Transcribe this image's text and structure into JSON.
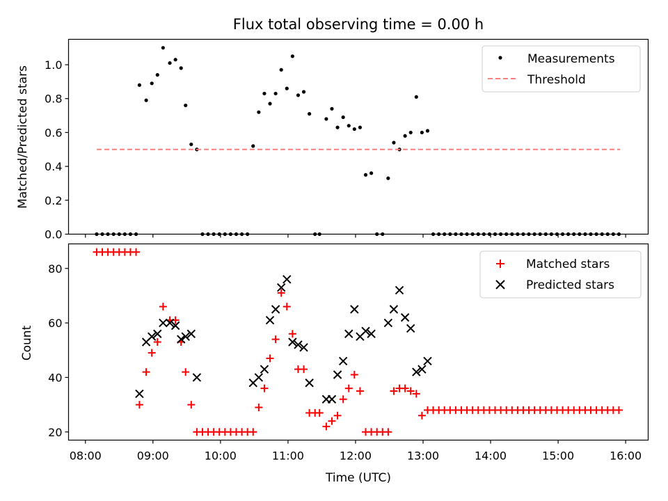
{
  "chart_data": [
    {
      "type": "scatter",
      "title": "Flux total observing time = 0.00 h",
      "ylabel": "Matched/Predicted stars",
      "xlabel": "",
      "ylim": [
        0,
        1.15
      ],
      "xlim": [
        "07:45",
        "16:20"
      ],
      "yticks": [
        "0.0",
        "0.2",
        "0.4",
        "0.6",
        "0.8",
        "1.0"
      ],
      "grid": false,
      "legend_position": "top-right",
      "series": [
        {
          "name": "Measurements",
          "marker": "dot",
          "color": "#000000",
          "points": [
            [
              "08:10",
              0
            ],
            [
              "08:15",
              0
            ],
            [
              "08:20",
              0
            ],
            [
              "08:25",
              0
            ],
            [
              "08:30",
              0
            ],
            [
              "08:35",
              0
            ],
            [
              "08:40",
              0
            ],
            [
              "08:45",
              0
            ],
            [
              "08:48",
              0.88
            ],
            [
              "08:54",
              0.79
            ],
            [
              "08:59",
              0.89
            ],
            [
              "09:04",
              0.94
            ],
            [
              "09:09",
              1.1
            ],
            [
              "09:15",
              1.01
            ],
            [
              "09:20",
              1.03
            ],
            [
              "09:25",
              0.98
            ],
            [
              "09:29",
              0.76
            ],
            [
              "09:34",
              0.53
            ],
            [
              "09:39",
              0.5
            ],
            [
              "09:44",
              0
            ],
            [
              "09:49",
              0
            ],
            [
              "09:54",
              0
            ],
            [
              "09:59",
              0
            ],
            [
              "10:04",
              0
            ],
            [
              "10:09",
              0
            ],
            [
              "10:14",
              0
            ],
            [
              "10:19",
              0
            ],
            [
              "10:24",
              0
            ],
            [
              "10:29",
              0.52
            ],
            [
              "10:34",
              0.72
            ],
            [
              "10:39",
              0.83
            ],
            [
              "10:44",
              0.77
            ],
            [
              "10:49",
              0.83
            ],
            [
              "10:54",
              0.97
            ],
            [
              "10:59",
              0.86
            ],
            [
              "11:04",
              1.05
            ],
            [
              "11:09",
              0.82
            ],
            [
              "11:14",
              0.84
            ],
            [
              "11:19",
              0.71
            ],
            [
              "11:24",
              0
            ],
            [
              "11:28",
              0
            ],
            [
              "11:34",
              0.68
            ],
            [
              "11:39",
              0.74
            ],
            [
              "11:44",
              0.63
            ],
            [
              "11:49",
              0.69
            ],
            [
              "11:54",
              0.64
            ],
            [
              "11:59",
              0.62
            ],
            [
              "12:04",
              0.63
            ],
            [
              "12:09",
              0.35
            ],
            [
              "12:14",
              0.36
            ],
            [
              "12:19",
              0
            ],
            [
              "12:24",
              0
            ],
            [
              "12:29",
              0.33
            ],
            [
              "12:34",
              0.54
            ],
            [
              "12:39",
              0.5
            ],
            [
              "12:44",
              0.58
            ],
            [
              "12:49",
              0.6
            ],
            [
              "12:54",
              0.81
            ],
            [
              "12:59",
              0.6
            ],
            [
              "13:04",
              0.61
            ],
            [
              "13:09",
              0
            ],
            [
              "13:14",
              0
            ],
            [
              "13:19",
              0
            ],
            [
              "13:24",
              0
            ],
            [
              "13:29",
              0
            ],
            [
              "13:34",
              0
            ],
            [
              "13:39",
              0
            ],
            [
              "13:44",
              0
            ],
            [
              "13:49",
              0
            ],
            [
              "13:54",
              0
            ],
            [
              "13:59",
              0
            ],
            [
              "14:04",
              0
            ],
            [
              "14:09",
              0
            ],
            [
              "14:14",
              0
            ],
            [
              "14:19",
              0
            ],
            [
              "14:24",
              0
            ],
            [
              "14:29",
              0
            ],
            [
              "14:34",
              0
            ],
            [
              "14:39",
              0
            ],
            [
              "14:44",
              0
            ],
            [
              "14:49",
              0
            ],
            [
              "14:54",
              0
            ],
            [
              "14:59",
              0
            ],
            [
              "15:04",
              0
            ],
            [
              "15:09",
              0
            ],
            [
              "15:14",
              0
            ],
            [
              "15:19",
              0
            ],
            [
              "15:24",
              0
            ],
            [
              "15:29",
              0
            ],
            [
              "15:34",
              0
            ],
            [
              "15:39",
              0
            ],
            [
              "15:44",
              0
            ],
            [
              "15:49",
              0
            ],
            [
              "15:54",
              0
            ]
          ]
        },
        {
          "name": "Threshold",
          "type": "line",
          "style": "dashed",
          "color": "#ff7f7f",
          "points": [
            [
              "08:10",
              0.5
            ],
            [
              "15:55",
              0.5
            ]
          ]
        }
      ]
    },
    {
      "type": "scatter",
      "title": "",
      "ylabel": "Count",
      "xlabel": "Time (UTC)",
      "ylim": [
        17,
        89
      ],
      "xlim": [
        "07:45",
        "16:20"
      ],
      "yticks": [
        "20",
        "40",
        "60",
        "80"
      ],
      "xticks": [
        "08:00",
        "09:00",
        "10:00",
        "11:00",
        "12:00",
        "13:00",
        "14:00",
        "15:00",
        "16:00"
      ],
      "grid": false,
      "legend_position": "top-right",
      "series": [
        {
          "name": "Matched stars",
          "marker": "plus",
          "color": "#ff0000",
          "points": [
            [
              "08:10",
              86
            ],
            [
              "08:15",
              86
            ],
            [
              "08:20",
              86
            ],
            [
              "08:25",
              86
            ],
            [
              "08:30",
              86
            ],
            [
              "08:35",
              86
            ],
            [
              "08:40",
              86
            ],
            [
              "08:45",
              86
            ],
            [
              "08:48",
              30
            ],
            [
              "08:54",
              42
            ],
            [
              "08:59",
              49
            ],
            [
              "09:04",
              53
            ],
            [
              "09:09",
              66
            ],
            [
              "09:15",
              61
            ],
            [
              "09:20",
              61
            ],
            [
              "09:25",
              53
            ],
            [
              "09:29",
              42
            ],
            [
              "09:34",
              30
            ],
            [
              "09:39",
              20
            ],
            [
              "09:44",
              20
            ],
            [
              "09:49",
              20
            ],
            [
              "09:54",
              20
            ],
            [
              "09:59",
              20
            ],
            [
              "10:04",
              20
            ],
            [
              "10:09",
              20
            ],
            [
              "10:14",
              20
            ],
            [
              "10:19",
              20
            ],
            [
              "10:24",
              20
            ],
            [
              "10:29",
              20
            ],
            [
              "10:34",
              29
            ],
            [
              "10:39",
              36
            ],
            [
              "10:44",
              47
            ],
            [
              "10:49",
              54
            ],
            [
              "10:54",
              71
            ],
            [
              "10:59",
              66
            ],
            [
              "11:04",
              56
            ],
            [
              "11:09",
              43
            ],
            [
              "11:14",
              43
            ],
            [
              "11:19",
              27
            ],
            [
              "11:24",
              27
            ],
            [
              "11:28",
              27
            ],
            [
              "11:34",
              22
            ],
            [
              "11:39",
              24
            ],
            [
              "11:44",
              26
            ],
            [
              "11:49",
              32
            ],
            [
              "11:54",
              36
            ],
            [
              "11:59",
              41
            ],
            [
              "12:04",
              35
            ],
            [
              "12:09",
              20
            ],
            [
              "12:14",
              20
            ],
            [
              "12:19",
              20
            ],
            [
              "12:24",
              20
            ],
            [
              "12:29",
              20
            ],
            [
              "12:34",
              35
            ],
            [
              "12:39",
              36
            ],
            [
              "12:44",
              36
            ],
            [
              "12:49",
              35
            ],
            [
              "12:54",
              34
            ],
            [
              "12:59",
              26
            ],
            [
              "13:04",
              28
            ],
            [
              "13:09",
              28
            ],
            [
              "13:14",
              28
            ],
            [
              "13:19",
              28
            ],
            [
              "13:24",
              28
            ],
            [
              "13:29",
              28
            ],
            [
              "13:34",
              28
            ],
            [
              "13:39",
              28
            ],
            [
              "13:44",
              28
            ],
            [
              "13:49",
              28
            ],
            [
              "13:54",
              28
            ],
            [
              "13:59",
              28
            ],
            [
              "14:04",
              28
            ],
            [
              "14:09",
              28
            ],
            [
              "14:14",
              28
            ],
            [
              "14:19",
              28
            ],
            [
              "14:24",
              28
            ],
            [
              "14:29",
              28
            ],
            [
              "14:34",
              28
            ],
            [
              "14:39",
              28
            ],
            [
              "14:44",
              28
            ],
            [
              "14:49",
              28
            ],
            [
              "14:54",
              28
            ],
            [
              "14:59",
              28
            ],
            [
              "15:04",
              28
            ],
            [
              "15:09",
              28
            ],
            [
              "15:14",
              28
            ],
            [
              "15:19",
              28
            ],
            [
              "15:24",
              28
            ],
            [
              "15:29",
              28
            ],
            [
              "15:34",
              28
            ],
            [
              "15:39",
              28
            ],
            [
              "15:44",
              28
            ],
            [
              "15:49",
              28
            ],
            [
              "15:54",
              28
            ]
          ]
        },
        {
          "name": "Predicted stars",
          "marker": "x",
          "color": "#000000",
          "points": [
            [
              "08:48",
              34
            ],
            [
              "08:54",
              53
            ],
            [
              "08:59",
              55
            ],
            [
              "09:04",
              56
            ],
            [
              "09:09",
              60
            ],
            [
              "09:15",
              60
            ],
            [
              "09:20",
              59
            ],
            [
              "09:25",
              54
            ],
            [
              "09:29",
              55
            ],
            [
              "09:34",
              56
            ],
            [
              "09:39",
              40
            ],
            [
              "10:29",
              38
            ],
            [
              "10:34",
              40
            ],
            [
              "10:39",
              43
            ],
            [
              "10:44",
              61
            ],
            [
              "10:49",
              65
            ],
            [
              "10:54",
              73
            ],
            [
              "10:59",
              76
            ],
            [
              "11:04",
              53
            ],
            [
              "11:09",
              52
            ],
            [
              "11:14",
              51
            ],
            [
              "11:19",
              38
            ],
            [
              "11:34",
              32
            ],
            [
              "11:39",
              32
            ],
            [
              "11:44",
              41
            ],
            [
              "11:49",
              46
            ],
            [
              "11:54",
              56
            ],
            [
              "11:59",
              65
            ],
            [
              "12:04",
              55
            ],
            [
              "12:09",
              57
            ],
            [
              "12:14",
              56
            ],
            [
              "12:29",
              60
            ],
            [
              "12:34",
              65
            ],
            [
              "12:39",
              72
            ],
            [
              "12:44",
              62
            ],
            [
              "12:49",
              58
            ],
            [
              "12:54",
              42
            ],
            [
              "12:59",
              43
            ],
            [
              "13:04",
              46
            ]
          ]
        }
      ]
    }
  ]
}
